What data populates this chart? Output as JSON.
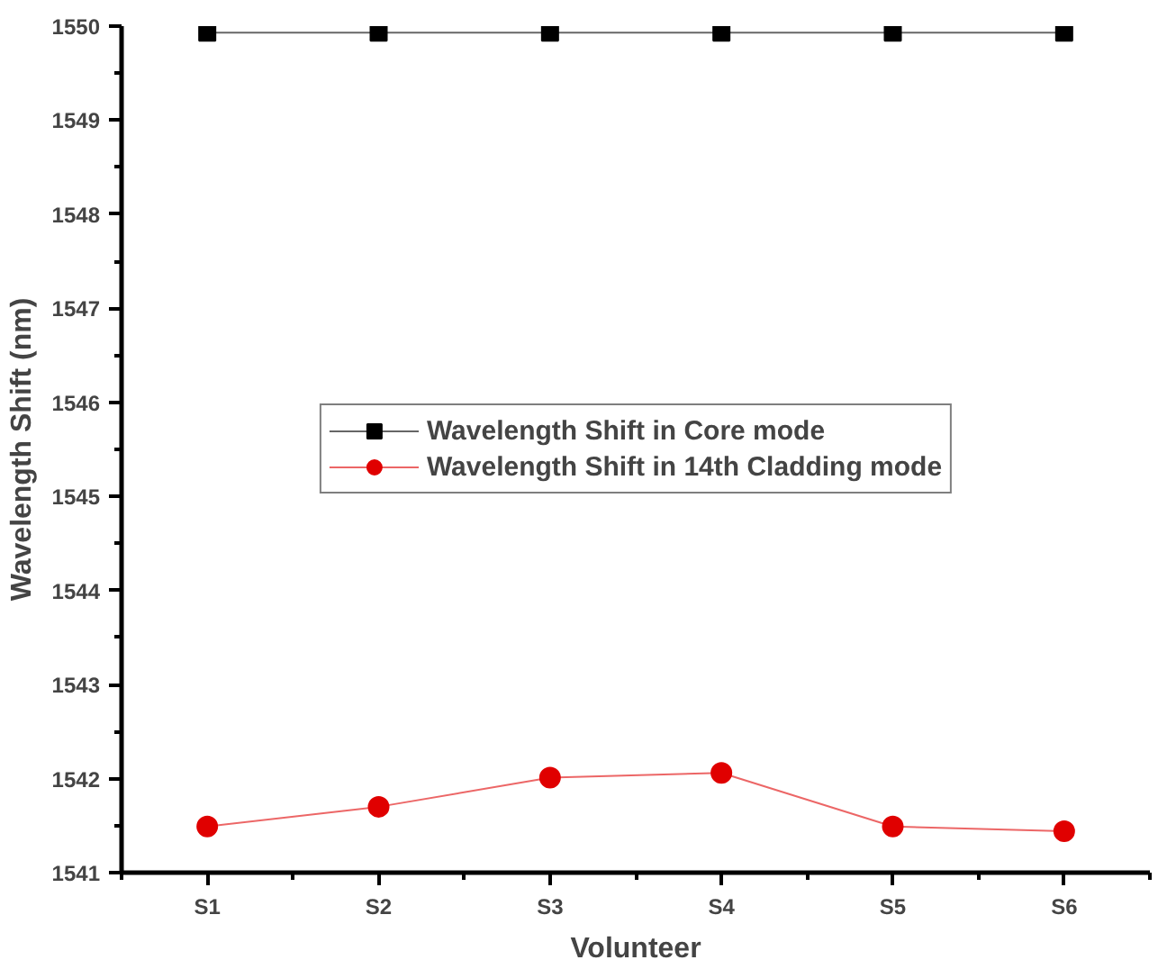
{
  "chart_data": {
    "type": "line",
    "xlabel": "Volunteer",
    "ylabel": "Wavelength Shift (nm)",
    "categories": [
      "S1",
      "S2",
      "S3",
      "S4",
      "S5",
      "S6"
    ],
    "series": [
      {
        "name": "Wavelength Shift in Core mode",
        "color": "#000000",
        "marker": "square",
        "values": [
          1549.93,
          1549.93,
          1549.93,
          1549.93,
          1549.93,
          1549.93
        ]
      },
      {
        "name": "Wavelength Shift in 14th Cladding mode",
        "color": "#e00000",
        "marker": "circle",
        "values": [
          1541.49,
          1541.7,
          1542.01,
          1542.06,
          1541.49,
          1541.44
        ]
      }
    ],
    "ylim": [
      1541,
      1550
    ],
    "yticks": [
      1541,
      1542,
      1543,
      1544,
      1545,
      1546,
      1547,
      1548,
      1549,
      1550
    ],
    "grid": false,
    "legend": "center",
    "line_style": "solid"
  }
}
